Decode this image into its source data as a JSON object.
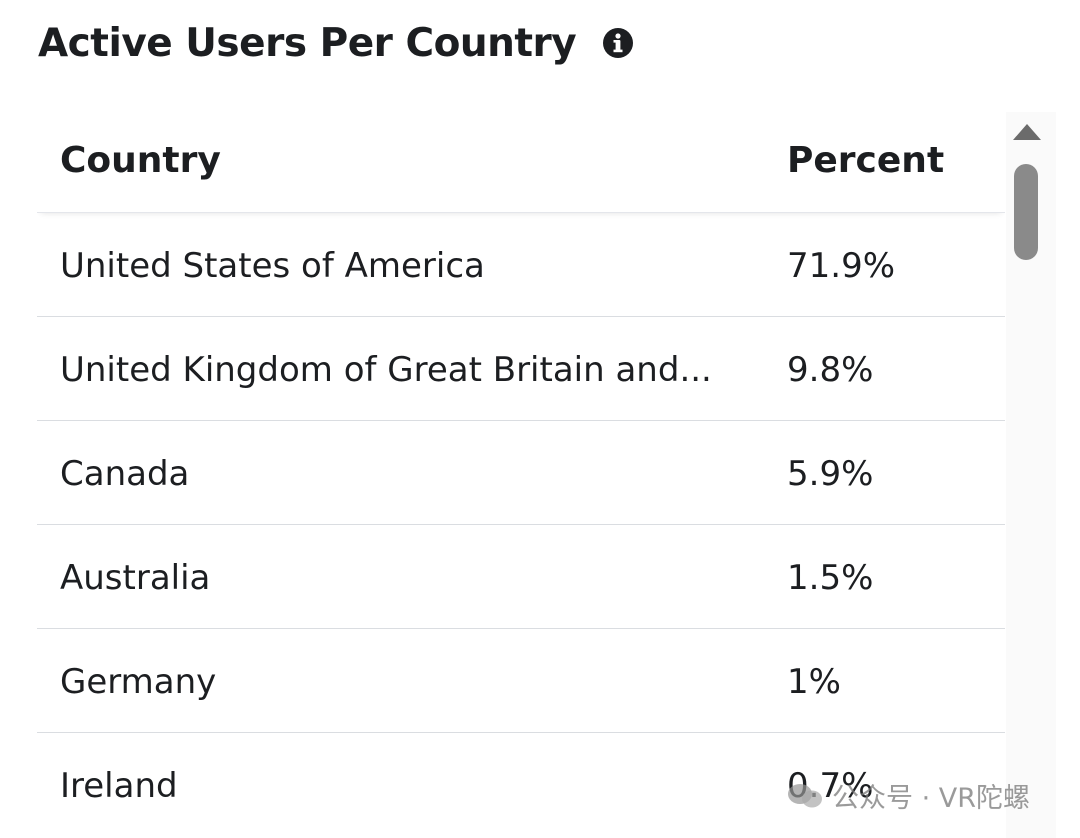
{
  "header": {
    "title": "Active Users Per Country",
    "info_icon": "info-icon"
  },
  "table": {
    "columns": [
      "Country",
      "Percent"
    ],
    "rows": [
      {
        "country": "United States of America",
        "percent": "71.9%"
      },
      {
        "country": "United Kingdom of Great Britain and...",
        "percent": "9.8%"
      },
      {
        "country": "Canada",
        "percent": "5.9%"
      },
      {
        "country": "Australia",
        "percent": "1.5%"
      },
      {
        "country": "Germany",
        "percent": "1%"
      },
      {
        "country": "Ireland",
        "percent": "0.7%"
      }
    ]
  },
  "scrollbar": {
    "up_icon": "scroll-up-arrow-icon"
  },
  "watermark": {
    "text": "公众号 · VR陀螺"
  },
  "colors": {
    "text": "#1c1e21",
    "divider": "#dadde1",
    "scrollbar": "#8a8a8a"
  }
}
